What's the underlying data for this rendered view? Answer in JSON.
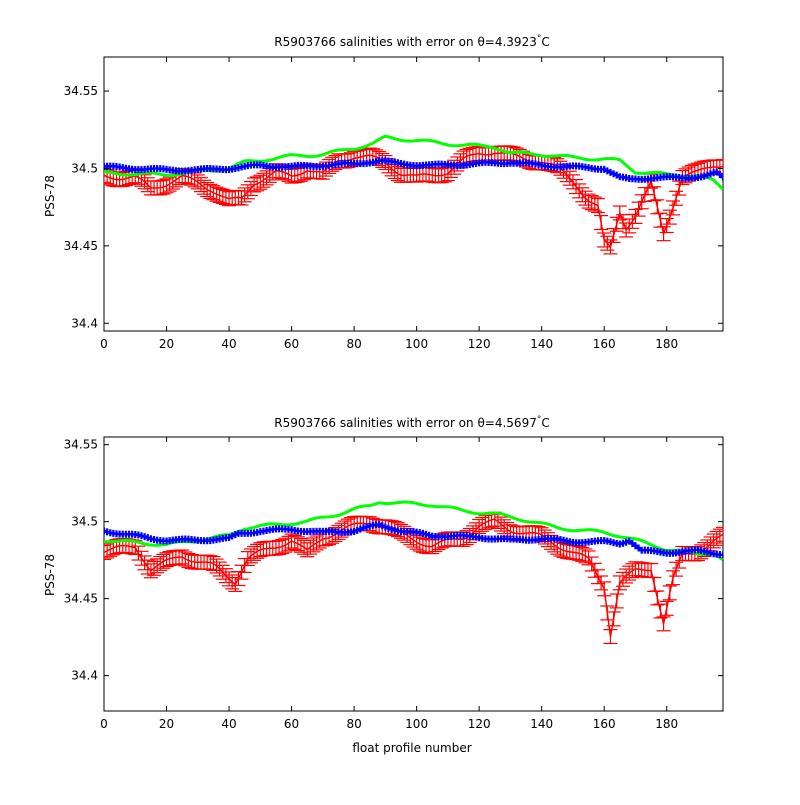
{
  "colors": {
    "red_series": "#ff0000",
    "green_series": "#00ff00",
    "blue_series": "#0000ff",
    "axes": "#000000"
  },
  "xlabel": "float profile number",
  "chart_data": [
    {
      "type": "line",
      "title": "R5903766 salinities with error on θ=4.3923°C",
      "title_main": "R5903766 salinities with error on θ=4.3923",
      "title_deg": "°",
      "title_unit": "C",
      "ylabel": "PSS-78",
      "xlim": [
        0,
        198
      ],
      "ylim": [
        34.395,
        34.572
      ],
      "xticks": [
        "0",
        "20",
        "40",
        "60",
        "80",
        "100",
        "120",
        "140",
        "160",
        "180"
      ],
      "yticks": [
        "34.4",
        "34.45",
        "34.5",
        "34.55"
      ],
      "grid": false,
      "series": [
        {
          "color": "red",
          "style": "errorbar",
          "keypoints": [
            [
              0,
              34.495
            ],
            [
              10,
              34.494
            ],
            [
              15,
              34.487
            ],
            [
              25,
              34.494
            ],
            [
              30,
              34.491
            ],
            [
              35,
              34.486
            ],
            [
              40,
              34.479
            ],
            [
              44,
              34.48
            ],
            [
              48,
              34.491
            ],
            [
              55,
              34.497
            ],
            [
              60,
              34.495
            ],
            [
              65,
              34.5
            ],
            [
              70,
              34.496
            ],
            [
              75,
              34.505
            ],
            [
              80,
              34.508
            ],
            [
              85,
              34.507
            ],
            [
              90,
              34.504
            ],
            [
              95,
              34.497
            ],
            [
              100,
              34.494
            ],
            [
              110,
              34.498
            ],
            [
              115,
              34.505
            ],
            [
              120,
              34.51
            ],
            [
              125,
              34.511
            ],
            [
              130,
              34.508
            ],
            [
              135,
              34.506
            ],
            [
              140,
              34.505
            ],
            [
              145,
              34.5
            ],
            [
              150,
              34.492
            ],
            [
              155,
              34.48
            ],
            [
              158,
              34.475
            ],
            [
              160,
              34.452
            ],
            [
              162,
              34.448
            ],
            [
              165,
              34.472
            ],
            [
              167,
              34.462
            ],
            [
              170,
              34.47
            ],
            [
              175,
              34.49
            ],
            [
              179,
              34.458
            ],
            [
              181,
              34.47
            ],
            [
              185,
              34.495
            ],
            [
              190,
              34.497
            ],
            [
              195,
              34.502
            ],
            [
              198,
              34.503
            ]
          ],
          "error": 0.0045
        },
        {
          "color": "green",
          "style": "line",
          "keypoints": [
            [
              0,
              34.497
            ],
            [
              20,
              34.496
            ],
            [
              40,
              34.5
            ],
            [
              45,
              34.504
            ],
            [
              60,
              34.508
            ],
            [
              70,
              34.509
            ],
            [
              80,
              34.513
            ],
            [
              86,
              34.516
            ],
            [
              90,
              34.52
            ],
            [
              95,
              34.519
            ],
            [
              105,
              34.517
            ],
            [
              115,
              34.515
            ],
            [
              125,
              34.514
            ],
            [
              130,
              34.51
            ],
            [
              140,
              34.509
            ],
            [
              150,
              34.507
            ],
            [
              160,
              34.506
            ],
            [
              165,
              34.505
            ],
            [
              170,
              34.498
            ],
            [
              180,
              34.496
            ],
            [
              190,
              34.495
            ],
            [
              195,
              34.492
            ],
            [
              198,
              34.487
            ]
          ]
        },
        {
          "color": "blue",
          "style": "markers",
          "keypoints": [
            [
              0,
              34.501
            ],
            [
              10,
              34.5
            ],
            [
              20,
              34.499
            ],
            [
              30,
              34.499
            ],
            [
              40,
              34.5
            ],
            [
              50,
              34.502
            ],
            [
              60,
              34.501
            ],
            [
              70,
              34.502
            ],
            [
              80,
              34.503
            ],
            [
              88,
              34.505
            ],
            [
              95,
              34.503
            ],
            [
              105,
              34.502
            ],
            [
              120,
              34.503
            ],
            [
              130,
              34.504
            ],
            [
              140,
              34.502
            ],
            [
              150,
              34.501
            ],
            [
              160,
              34.5
            ],
            [
              165,
              34.494
            ],
            [
              168,
              34.493
            ],
            [
              175,
              34.494
            ],
            [
              185,
              34.494
            ],
            [
              192,
              34.495
            ],
            [
              196,
              34.497
            ],
            [
              198,
              34.494
            ]
          ]
        }
      ]
    },
    {
      "type": "line",
      "title": "R5903766 salinities with error on θ=4.5697°C",
      "title_main": "R5903766 salinities with error on θ=4.5697",
      "title_deg": "°",
      "title_unit": "C",
      "ylabel": "PSS-78",
      "xlim": [
        0,
        198
      ],
      "ylim": [
        34.377,
        34.555
      ],
      "xticks": [
        "0",
        "20",
        "40",
        "60",
        "80",
        "100",
        "120",
        "140",
        "160",
        "180"
      ],
      "yticks": [
        "34.4",
        "34.45",
        "34.5",
        "34.55"
      ],
      "grid": false,
      "series": [
        {
          "color": "red",
          "style": "errorbar",
          "keypoints": [
            [
              0,
              34.481
            ],
            [
              10,
              34.484
            ],
            [
              15,
              34.469
            ],
            [
              25,
              34.478
            ],
            [
              35,
              34.471
            ],
            [
              42,
              34.461
            ],
            [
              46,
              34.476
            ],
            [
              50,
              34.48
            ],
            [
              60,
              34.488
            ],
            [
              65,
              34.48
            ],
            [
              70,
              34.49
            ],
            [
              80,
              34.497
            ],
            [
              85,
              34.5
            ],
            [
              90,
              34.497
            ],
            [
              95,
              34.492
            ],
            [
              105,
              34.484
            ],
            [
              115,
              34.49
            ],
            [
              120,
              34.497
            ],
            [
              125,
              34.5
            ],
            [
              130,
              34.495
            ],
            [
              140,
              34.49
            ],
            [
              150,
              34.48
            ],
            [
              155,
              34.475
            ],
            [
              160,
              34.458
            ],
            [
              162,
              34.427
            ],
            [
              165,
              34.46
            ],
            [
              170,
              34.468
            ],
            [
              175,
              34.47
            ],
            [
              179,
              34.434
            ],
            [
              182,
              34.462
            ],
            [
              185,
              34.478
            ],
            [
              190,
              34.481
            ],
            [
              195,
              34.487
            ],
            [
              198,
              34.49
            ]
          ],
          "error": 0.0045
        },
        {
          "color": "green",
          "style": "line",
          "keypoints": [
            [
              0,
              34.488
            ],
            [
              20,
              34.485
            ],
            [
              40,
              34.491
            ],
            [
              45,
              34.496
            ],
            [
              55,
              34.498
            ],
            [
              65,
              34.5
            ],
            [
              75,
              34.505
            ],
            [
              80,
              34.508
            ],
            [
              85,
              34.51
            ],
            [
              88,
              34.513
            ],
            [
              95,
              34.512
            ],
            [
              105,
              34.511
            ],
            [
              115,
              34.507
            ],
            [
              125,
              34.505
            ],
            [
              135,
              34.501
            ],
            [
              145,
              34.496
            ],
            [
              150,
              34.495
            ],
            [
              160,
              34.493
            ],
            [
              165,
              34.491
            ],
            [
              170,
              34.488
            ],
            [
              180,
              34.482
            ],
            [
              190,
              34.479
            ],
            [
              195,
              34.48
            ],
            [
              198,
              34.475
            ]
          ]
        },
        {
          "color": "blue",
          "style": "markers",
          "keypoints": [
            [
              0,
              34.494
            ],
            [
              10,
              34.491
            ],
            [
              15,
              34.489
            ],
            [
              20,
              34.488
            ],
            [
              30,
              34.488
            ],
            [
              40,
              34.489
            ],
            [
              43,
              34.492
            ],
            [
              50,
              34.494
            ],
            [
              60,
              34.495
            ],
            [
              70,
              34.493
            ],
            [
              80,
              34.494
            ],
            [
              88,
              34.498
            ],
            [
              95,
              34.494
            ],
            [
              105,
              34.491
            ],
            [
              120,
              34.49
            ],
            [
              130,
              34.488
            ],
            [
              140,
              34.489
            ],
            [
              150,
              34.487
            ],
            [
              160,
              34.487
            ],
            [
              165,
              34.486
            ],
            [
              168,
              34.488
            ],
            [
              172,
              34.481
            ],
            [
              180,
              34.48
            ],
            [
              190,
              34.481
            ],
            [
              198,
              34.479
            ]
          ]
        }
      ]
    }
  ]
}
